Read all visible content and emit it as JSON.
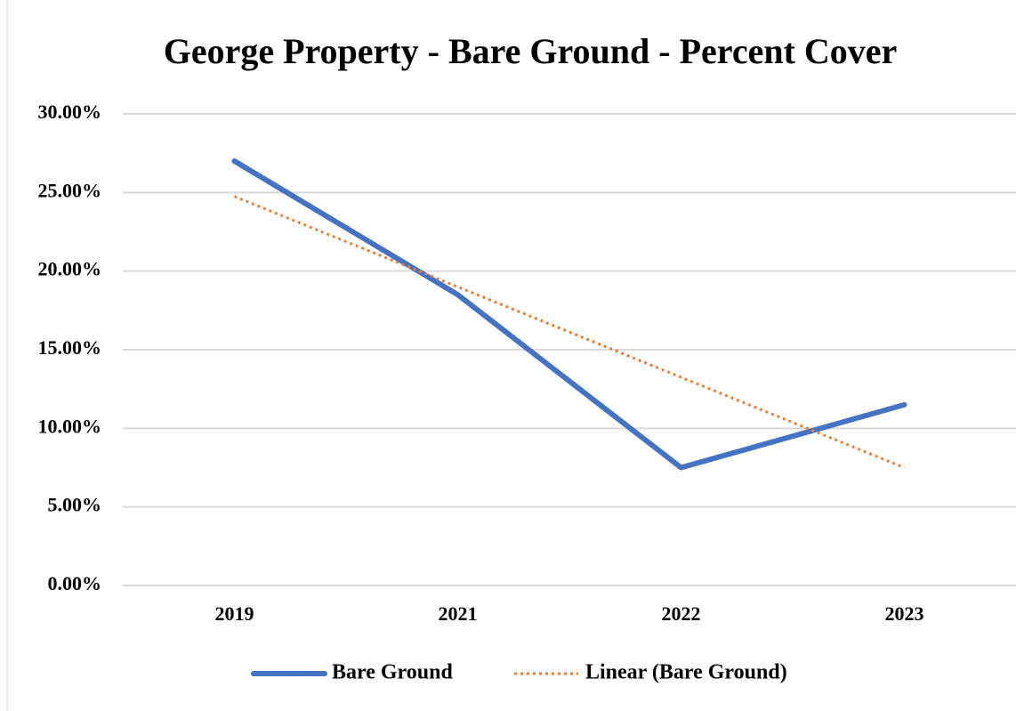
{
  "chart_data": {
    "type": "line",
    "title": "George Property - Bare Ground - Percent Cover",
    "categories": [
      "2019",
      "2021",
      "2022",
      "2023"
    ],
    "series": [
      {
        "name": "Bare Ground",
        "color": "#4472c4",
        "linestyle": "solid",
        "values": [
          27,
          18.5,
          7.5,
          11.5
        ]
      },
      {
        "name": "Linear (Bare Ground)",
        "color": "#ed7d31",
        "linestyle": "dotted",
        "values": [
          24.75,
          19,
          13.25,
          7.5
        ]
      }
    ],
    "ylim": [
      0,
      30
    ],
    "yticks": [
      {
        "value": 0,
        "label": "0.00%"
      },
      {
        "value": 5,
        "label": "5.00%"
      },
      {
        "value": 10,
        "label": "10.00%"
      },
      {
        "value": 15,
        "label": "15.00%"
      },
      {
        "value": 20,
        "label": "20.00%"
      },
      {
        "value": 25,
        "label": "25.00%"
      },
      {
        "value": 30,
        "label": "30.00%"
      }
    ],
    "grid": true,
    "legend": "bottom"
  }
}
